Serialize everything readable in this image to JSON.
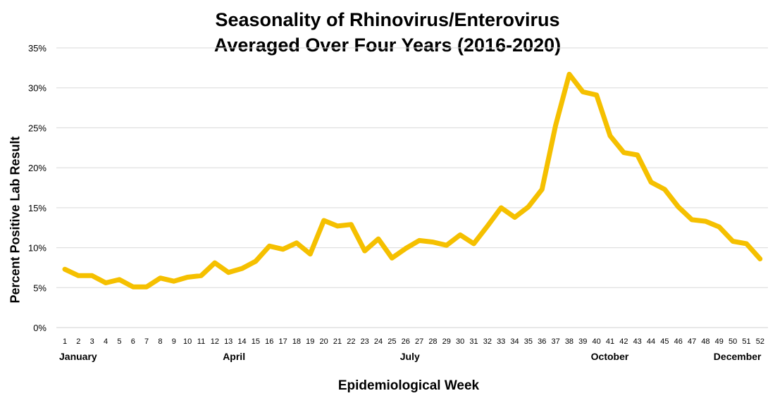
{
  "chart_data": {
    "type": "line",
    "title_lines": [
      "Seasonality of Rhinovirus/Enterovirus",
      "Averaged Over Four Years (2016-2020)"
    ],
    "xlabel": "Epidemiological Week",
    "ylabel": "Percent Positive Lab Result",
    "ylim": [
      0,
      35
    ],
    "yticks": [
      "0%",
      "5%",
      "10%",
      "15%",
      "20%",
      "25%",
      "30%",
      "35%"
    ],
    "grid": true,
    "line_color": "#F5C000",
    "x": [
      1,
      2,
      3,
      4,
      5,
      6,
      7,
      8,
      9,
      10,
      11,
      12,
      13,
      14,
      15,
      16,
      17,
      18,
      19,
      20,
      21,
      22,
      23,
      24,
      25,
      26,
      27,
      28,
      29,
      30,
      31,
      32,
      33,
      34,
      35,
      36,
      37,
      38,
      39,
      40,
      41,
      42,
      43,
      44,
      45,
      46,
      47,
      48,
      49,
      50,
      51,
      52
    ],
    "values": [
      7.3,
      6.5,
      6.5,
      5.6,
      6.0,
      5.1,
      5.1,
      6.2,
      5.8,
      6.3,
      6.5,
      8.1,
      6.9,
      7.4,
      8.3,
      10.2,
      9.8,
      10.6,
      9.2,
      13.4,
      12.7,
      12.9,
      9.6,
      11.1,
      8.7,
      9.9,
      10.9,
      10.7,
      10.3,
      11.6,
      10.5,
      12.7,
      15.0,
      13.8,
      15.1,
      17.3,
      25.3,
      31.7,
      29.5,
      29.1,
      24.0,
      21.9,
      21.6,
      18.2,
      17.3,
      15.1,
      13.5,
      13.3,
      12.6,
      10.8,
      10.5,
      8.6
    ],
    "month_labels": [
      {
        "label": "January",
        "week": 1
      },
      {
        "label": "April",
        "week": 13
      },
      {
        "label": "July",
        "week": 26
      },
      {
        "label": "October",
        "week": 40
      },
      {
        "label": "December",
        "week": 49
      }
    ]
  }
}
